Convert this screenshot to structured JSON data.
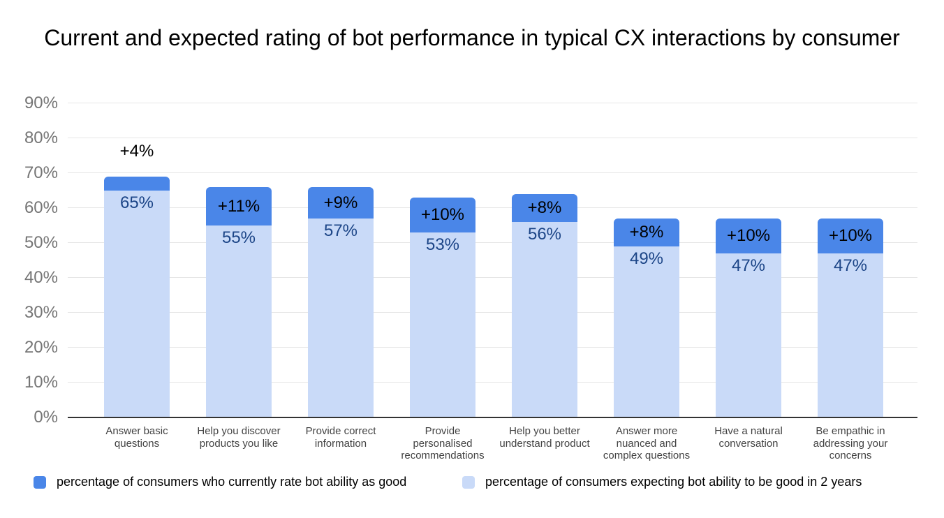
{
  "chart_data": {
    "type": "bar",
    "stacked": true,
    "title": "Current and expected rating of bot performance in typical CX interactions by consumer",
    "categories": [
      "Answer basic questions",
      "Help you discover products you like",
      "Provide correct information",
      "Provide personalised recommendations",
      "Help you better understand product",
      "Answer more nuanced and complex questions",
      "Have a natural conversation",
      "Be empathic in addressing your concerns"
    ],
    "series": [
      {
        "name": "percentage of consumers expecting bot ability to be good in 2 years",
        "role": "base-light-segment",
        "color": "#c9daf8",
        "values": [
          65,
          55,
          57,
          53,
          56,
          49,
          47,
          47
        ],
        "data_labels": [
          "65%",
          "55%",
          "57%",
          "53%",
          "56%",
          "49%",
          "47%",
          "47%"
        ],
        "data_label_color": "#1c4587"
      },
      {
        "name": "percentage of consumers who currently rate bot ability as good",
        "role": "top-dark-segment",
        "color": "#4a86e8",
        "values": [
          4,
          11,
          9,
          10,
          8,
          8,
          10,
          10
        ],
        "data_labels": [
          "+4%",
          "+11%",
          "+9%",
          "+10%",
          "+8%",
          "+8%",
          "+10%",
          "+10%"
        ],
        "data_label_positions": [
          "above-bar",
          "inside",
          "inside",
          "inside",
          "inside",
          "inside",
          "inside",
          "inside"
        ],
        "data_label_color": "#000000"
      }
    ],
    "stack_totals": [
      69,
      66,
      66,
      63,
      64,
      57,
      57,
      57
    ],
    "y_axis": {
      "min": 0,
      "max": 90,
      "tick_step": 10,
      "tick_labels": [
        "0%",
        "10%",
        "20%",
        "30%",
        "40%",
        "50%",
        "60%",
        "70%",
        "80%",
        "90%"
      ],
      "gridlines": true,
      "gridline_color": "#e6e6e6",
      "axis_line_color": "#333333",
      "tick_label_color": "#757575"
    },
    "x_axis": {
      "category_label_color": "#424242"
    },
    "legend_position": "bottom"
  }
}
